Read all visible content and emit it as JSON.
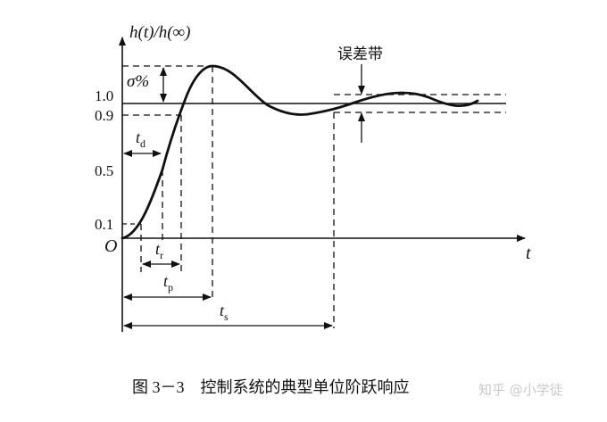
{
  "axes": {
    "y_label": "h(t)/h(∞)",
    "x_label": "t",
    "origin": "O"
  },
  "y_ticks": [
    "1.0",
    "0.9",
    "0.5",
    "0.1"
  ],
  "overshoot_label": "σ%",
  "band_label": "误差带",
  "time_labels": {
    "td": {
      "main": "t",
      "sub": "d"
    },
    "tr": {
      "main": "t",
      "sub": "r"
    },
    "tp": {
      "main": "t",
      "sub": "p"
    },
    "ts": {
      "main": "t",
      "sub": "s"
    }
  },
  "caption": {
    "number": "图 3－3",
    "title": "控制系统的典型单位阶跃响应"
  },
  "watermark": "知乎 @小学徒"
}
